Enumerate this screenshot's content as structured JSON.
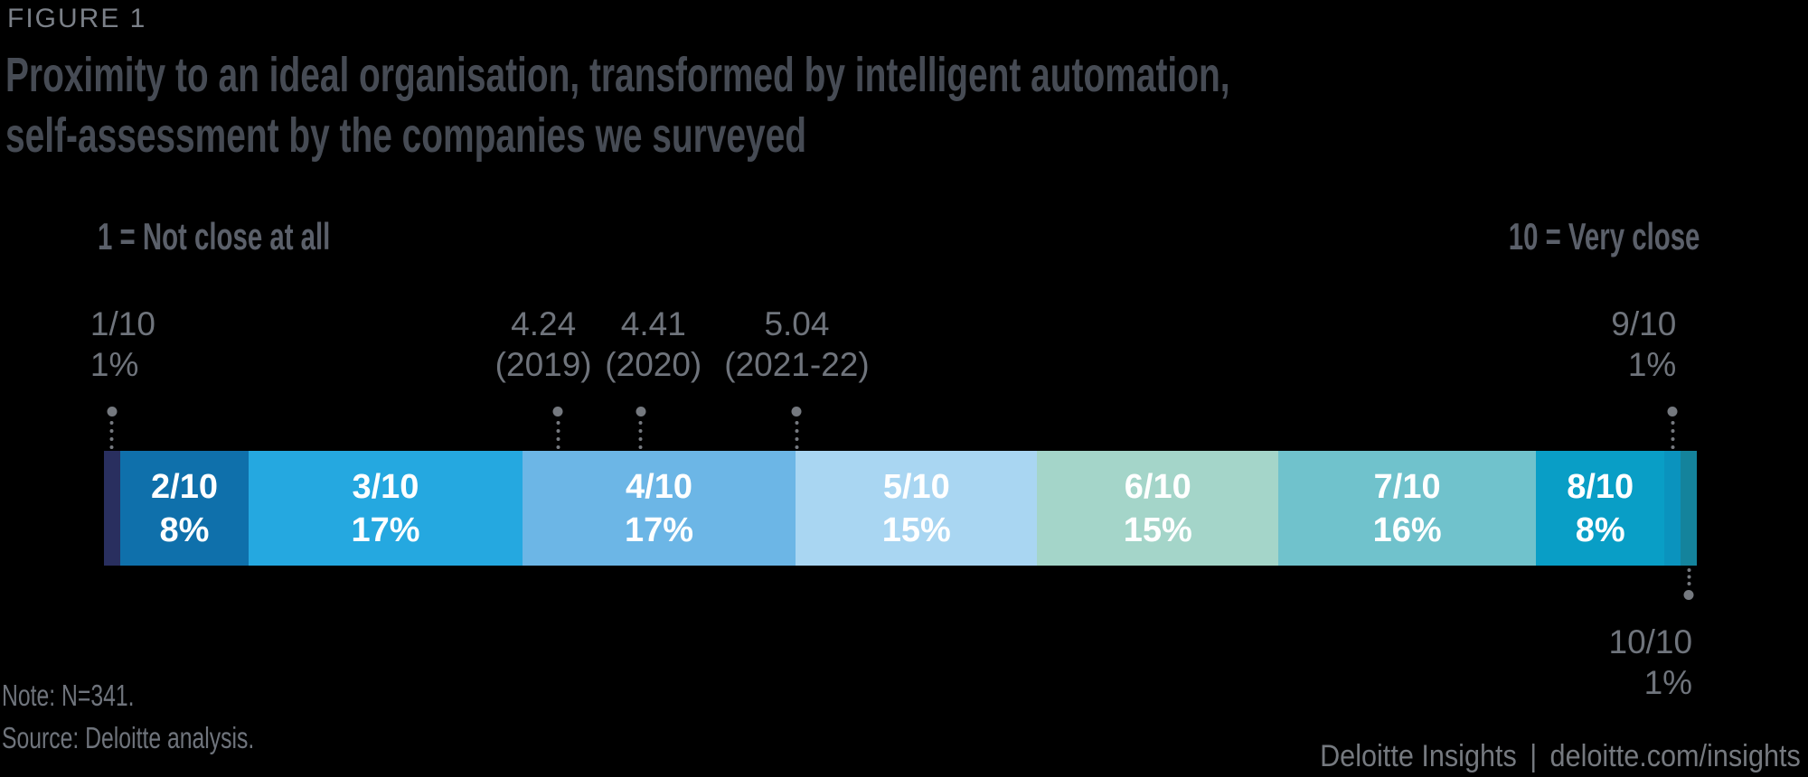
{
  "figure_label": "FIGURE 1",
  "title": {
    "line1": "Proximity to an ideal organisation, transformed by intelligent automation,",
    "line2": "self-assessment by the companies we surveyed"
  },
  "scale": {
    "left_label": "1 = Not close at all",
    "right_label": "10 = Very close"
  },
  "chart_data": {
    "type": "bar",
    "subtype": "horizontal-stacked-percentage",
    "description": "Share of surveyed companies by self-assessed proximity score (1 to 10)",
    "categories": [
      "1/10",
      "2/10",
      "3/10",
      "4/10",
      "5/10",
      "6/10",
      "7/10",
      "8/10",
      "9/10",
      "10/10"
    ],
    "values": [
      1,
      8,
      17,
      17,
      15,
      15,
      16,
      8,
      1,
      1
    ],
    "segments": [
      {
        "label": "1/10",
        "pct": 1,
        "color": "#292F5F",
        "inside_label": false,
        "callout": {
          "side": "top",
          "align": "left"
        }
      },
      {
        "label": "2/10",
        "pct": 8,
        "color": "#0F70AB",
        "inside_label": true
      },
      {
        "label": "3/10",
        "pct": 17,
        "color": "#25A8E0",
        "inside_label": true
      },
      {
        "label": "4/10",
        "pct": 17,
        "color": "#6CB6E6",
        "inside_label": true
      },
      {
        "label": "5/10",
        "pct": 15,
        "color": "#A9D6F2",
        "inside_label": true
      },
      {
        "label": "6/10",
        "pct": 15,
        "color": "#A4D5C9",
        "inside_label": true
      },
      {
        "label": "7/10",
        "pct": 16,
        "color": "#70C2CC",
        "inside_label": true
      },
      {
        "label": "8/10",
        "pct": 8,
        "color": "#099EC6",
        "inside_label": true
      },
      {
        "label": "9/10",
        "pct": 1,
        "color": "#0A93BE",
        "inside_label": false,
        "callout": {
          "side": "top",
          "align": "right"
        }
      },
      {
        "label": "10/10",
        "pct": 1,
        "color": "#14839C",
        "inside_label": false,
        "callout": {
          "side": "bottom",
          "align": "right"
        }
      }
    ],
    "score_markers": [
      {
        "value": "4.24",
        "period": "(2019)",
        "position_pct": 28.5,
        "label_dx": -16
      },
      {
        "value": "4.41",
        "period": "(2020)",
        "position_pct": 33.7,
        "label_dx": 14
      },
      {
        "value": "5.04",
        "period": "(2021-22)",
        "position_pct": 43.5,
        "label_dx": 0
      }
    ],
    "marker_color": "#75797F",
    "legend_position": "none",
    "grid": false
  },
  "note": "Note: N=341.",
  "source": "Source: Deloitte analysis.",
  "footer": {
    "brand": "Deloitte Insights",
    "separator": "|",
    "url": "deloitte.com/insights"
  }
}
